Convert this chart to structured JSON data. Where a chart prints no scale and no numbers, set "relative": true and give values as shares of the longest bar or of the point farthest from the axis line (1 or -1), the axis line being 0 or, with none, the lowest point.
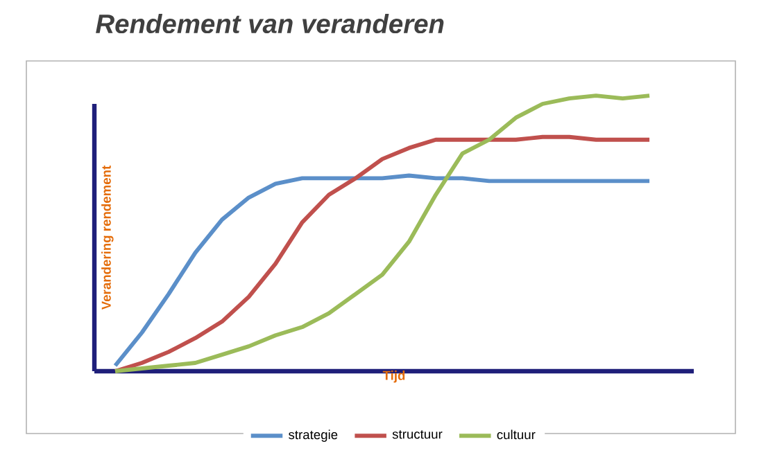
{
  "chart_data": {
    "type": "line",
    "title": "Rendement van veranderen",
    "xlabel": "Tijd",
    "ylabel": "Verandering rendement",
    "relative": true,
    "legend": "bottom",
    "categories": [
      null,
      null,
      null,
      null,
      null,
      null,
      null,
      null,
      null,
      null,
      null,
      null,
      null,
      null,
      null,
      null,
      null,
      null,
      null,
      null,
      null
    ],
    "series": [
      {
        "name": "strategie",
        "color": "#5b8fc9",
        "values": [
          0.02,
          0.14,
          0.28,
          0.43,
          0.55,
          0.63,
          0.68,
          0.7,
          0.7,
          0.7,
          0.7,
          0.71,
          0.7,
          0.7,
          0.69,
          0.69,
          0.69,
          0.69,
          0.69,
          0.69,
          0.69
        ]
      },
      {
        "name": "structuur",
        "color": "#c0504d",
        "values": [
          0,
          0.03,
          0.07,
          0.12,
          0.18,
          0.27,
          0.39,
          0.54,
          0.64,
          0.7,
          0.77,
          0.81,
          0.84,
          0.84,
          0.84,
          0.84,
          0.85,
          0.85,
          0.84,
          0.84,
          0.84
        ]
      },
      {
        "name": "cultuur",
        "color": "#9bbb59",
        "values": [
          0,
          0.01,
          0.02,
          0.03,
          0.06,
          0.09,
          0.13,
          0.16,
          0.21,
          0.28,
          0.35,
          0.47,
          0.64,
          0.79,
          0.84,
          0.92,
          0.97,
          0.99,
          1,
          0.99,
          1
        ]
      }
    ]
  }
}
